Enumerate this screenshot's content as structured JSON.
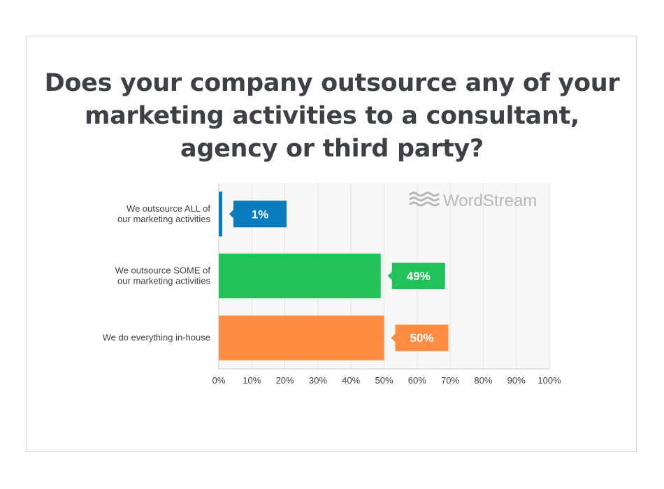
{
  "chart_data": {
    "type": "bar",
    "orientation": "horizontal",
    "title": "Does your company outsource any of your marketing activities to a consultant, agency or third party?",
    "brand": "WordStream",
    "categories": [
      [
        "We outsource ALL of",
        "our marketing activities"
      ],
      [
        "We outsource SOME of",
        "our marketing activities"
      ],
      [
        "We do everything in-house"
      ]
    ],
    "values": [
      1,
      49,
      50
    ],
    "data_labels": [
      "1%",
      "49%",
      "50%"
    ],
    "colors": [
      "#0b7bbf",
      "#21c25a",
      "#ff8c42"
    ],
    "xlim": [
      0,
      100
    ],
    "xticks": [
      "0%",
      "10%",
      "20%",
      "30%",
      "40%",
      "50%",
      "60%",
      "70%",
      "80%",
      "90%",
      "100%"
    ],
    "grid": true,
    "accent_colors": {
      "plot_bg": "#f6f7f7",
      "grid": "#e2e4e5",
      "text": "#3d4147"
    }
  }
}
